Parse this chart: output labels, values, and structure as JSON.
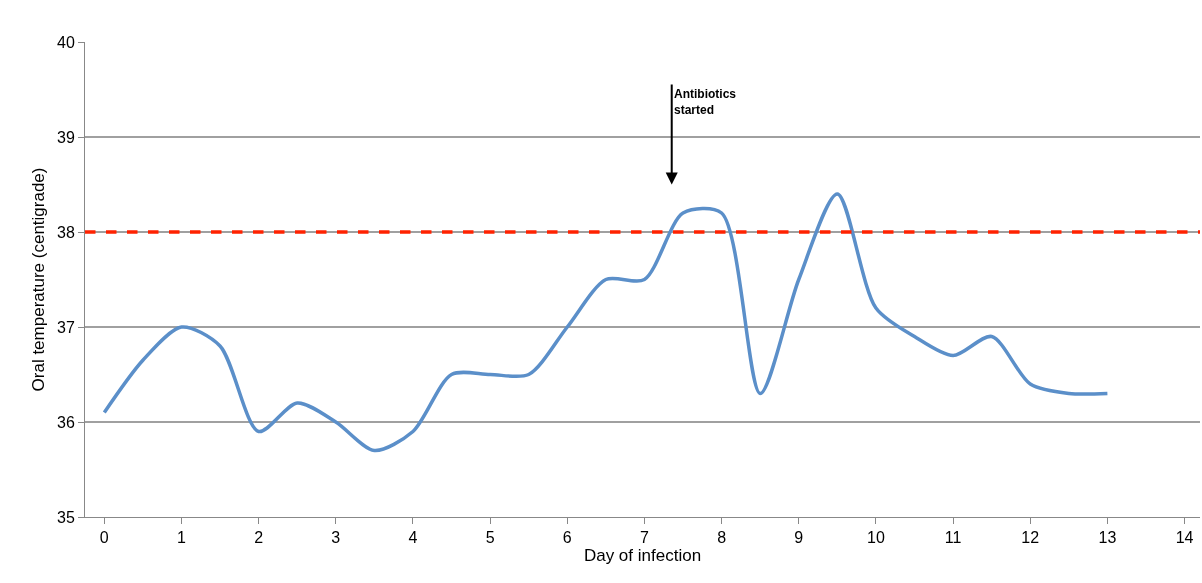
{
  "chart_data": {
    "type": "line",
    "xlabel": "Day of infection",
    "ylabel": "Oral temperature (centigrade)",
    "x": [
      0,
      0.5,
      1,
      1.5,
      2,
      2.5,
      3,
      3.5,
      4,
      4.5,
      5,
      5.5,
      6,
      6.5,
      7,
      7.5,
      8,
      8.5,
      9,
      9.5,
      10,
      10.5,
      11,
      11.5,
      12,
      12.5,
      13
    ],
    "series": [
      {
        "color": "#5b8fc9",
        "values": [
          36.1,
          36.65,
          37.0,
          36.8,
          35.9,
          36.2,
          36.0,
          35.7,
          35.9,
          36.5,
          36.5,
          36.5,
          37.0,
          37.5,
          37.5,
          38.2,
          38.2,
          36.3,
          37.5,
          38.4,
          37.2,
          36.9,
          36.7,
          36.9,
          36.4,
          36.3,
          36.3
        ]
      }
    ],
    "xlim": [
      -0.25,
      14.2
    ],
    "xticks": [
      0,
      1,
      2,
      3,
      4,
      5,
      6,
      7,
      8,
      9,
      10,
      11,
      12,
      13,
      14
    ],
    "ylim": [
      35,
      40
    ],
    "yticks": [
      35,
      36,
      37,
      38,
      39,
      40
    ],
    "grid": "y",
    "marker": "none",
    "line_style": "solid",
    "ref_lines": [
      {
        "axis": "y",
        "value": 38,
        "color": "#ff2200",
        "line_style": "dashed"
      }
    ],
    "annotations": [
      "Antibiotics\nstarted"
    ]
  }
}
